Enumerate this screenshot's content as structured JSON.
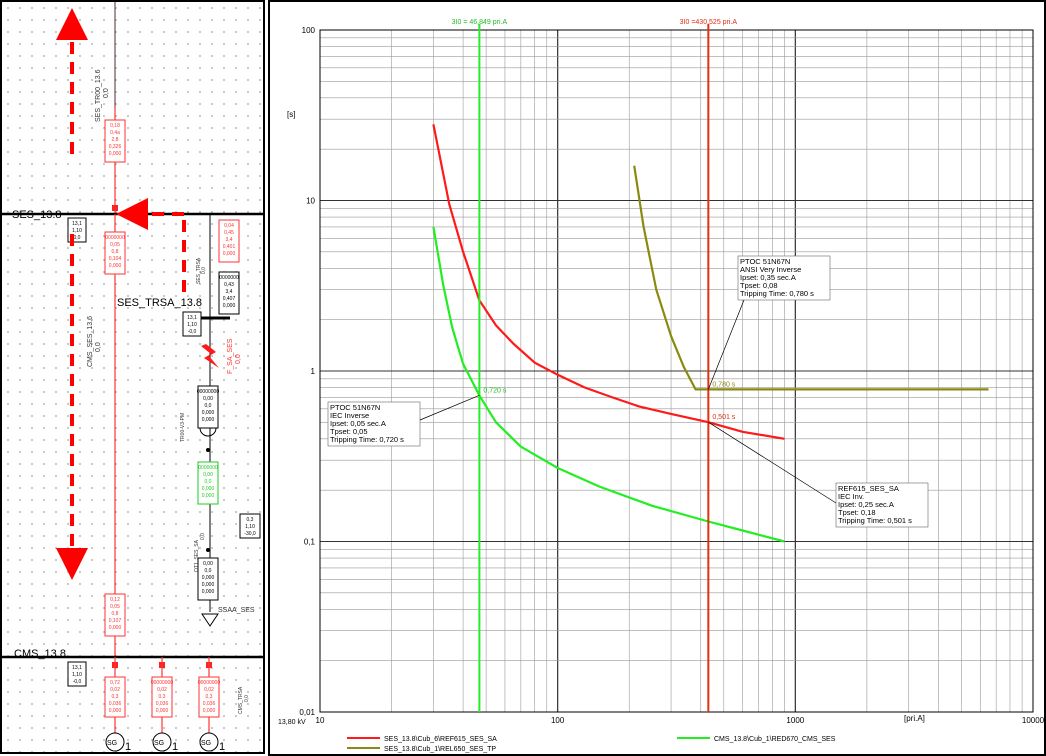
{
  "single_line": {
    "buses": [
      {
        "id": "ses",
        "label": "SES_13.8"
      },
      {
        "id": "trsa",
        "label": "SES_TRSA_13.8"
      },
      {
        "id": "cms",
        "label": "CMS_13.8"
      }
    ],
    "line_labels": {
      "tr00": "SES_TR00_13.6",
      "tr00_val": "0,0",
      "cms_ses": "CMS_SES_13.6",
      "cms_ses_val": "0,0",
      "ses_trsa": "SES_TRSA",
      "ses_trsa_val": "0,0",
      "fault": "F_SA_SES",
      "fault_val": "0,0",
      "tr00_v3": "TR00-V3-PM",
      "qt1": "QT1_SES_SA",
      "qt1_val": "0,0",
      "ssaa": "SSAA_SES",
      "cms_trsa": "CMS_TRSA",
      "cms_trsa_val": "0,0"
    },
    "sg_label": "SG",
    "sg_index": "1",
    "result_boxes": {
      "b1": [
        "0,18",
        "0,4a",
        "2,8",
        "0,326",
        "0,000"
      ],
      "b2": [
        "0000000",
        "0,05",
        "0,8",
        "0,104",
        "0,000"
      ],
      "b3": [
        "0,04",
        "0,45",
        "3,4",
        "0,401",
        "0,000"
      ],
      "b4": [
        "0000000",
        "0,43",
        "3,4",
        "0,407",
        "0,000"
      ],
      "b5": [
        "00000000",
        "0,00",
        "0,0",
        "0,000",
        "0,000"
      ],
      "b6": [
        "0000000",
        "0,00",
        "0,0",
        "0,000",
        "0,000"
      ],
      "b7": [
        "0,00",
        "0,0",
        "0,000",
        "0,000",
        "0,000"
      ],
      "b8": [
        "0,12",
        "0,05",
        "0,8",
        "0,107",
        "0,000"
      ],
      "b9": [
        "0,72",
        "0,02",
        "0,3",
        "0,036",
        "0,000"
      ],
      "b10": [
        "00000000",
        "0,02",
        "0,3",
        "0,036",
        "0,000"
      ],
      "b11": [
        "00000000",
        "0,02",
        "0,3",
        "0,036",
        "0,000"
      ],
      "ses_bus_box": [
        "13,1",
        "1,10",
        "0,0"
      ],
      "trsa_bus_box": [
        "13,1",
        "1,10",
        "-0,0"
      ],
      "sa_bus_box": [
        "0,3",
        "1,10",
        "-30,0"
      ],
      "cms_bus_box": [
        "13,1",
        "1,10",
        "-0,0"
      ]
    }
  },
  "tcc_chart": {
    "y_axis_unit": "[s]",
    "x_axis_unit": "[pri.A]",
    "voltage_label": "13,80 kV",
    "x_ticks": [
      "10",
      "100",
      "1000",
      "10000"
    ],
    "y_ticks": [
      "100",
      "10",
      "1",
      "0,1",
      "0,01"
    ],
    "vline_green_label": "3I0 = 46,849 pri.A",
    "vline_red_label": "3I0 =430,525 pri.A",
    "point_labels": {
      "green": "0,720 s",
      "olive": "0,780 s",
      "red": "0,501 s"
    },
    "annotations": {
      "green": [
        "PTOC 51N67N",
        "IEC Inverse",
        "Ipset: 0,05 sec.A",
        "Tpset: 0,05",
        "Tripping Time: 0,720 s"
      ],
      "olive": [
        "PTOC 51N67N",
        "ANSI Very Inverse",
        "Ipset: 0,35 sec.A",
        "Tpset: 0,08",
        "Tripping Time: 0,780 s"
      ],
      "red": [
        "REF615_SES_SA",
        "IEC Inv.",
        "Ipset: 0,25 sec.A",
        "Tpset: 0,18",
        "Tripping Time: 0,501 s"
      ]
    },
    "legend": [
      {
        "name": "SES_13.8\\Cub_6\\REF615_SES_SA",
        "color": "#ff1a1a"
      },
      {
        "name": "CMS_13.8\\Cub_1\\RED670_CMS_SES",
        "color": "#22ee22"
      },
      {
        "name": "SES_13.8\\Cub_1\\REL650_SES_TP",
        "color": "#8a8a10"
      }
    ]
  },
  "chart_data": {
    "type": "line",
    "title": "",
    "xlabel": "[pri.A]",
    "ylabel": "[s]",
    "x_scale": "log",
    "y_scale": "log",
    "xlim": [
      10,
      10000
    ],
    "ylim": [
      0.01,
      100
    ],
    "grid": true,
    "legend_position": "bottom",
    "series": [
      {
        "name": "SES_13.8\\Cub_6\\REF615_SES_SA",
        "color": "#ff1a1a",
        "x": [
          30,
          35,
          40,
          46.8,
          55,
          65,
          80,
          100,
          130,
          170,
          220,
          300,
          430.5,
          600,
          900
        ],
        "y": [
          28,
          9.5,
          5.0,
          2.6,
          1.85,
          1.45,
          1.12,
          0.95,
          0.8,
          0.7,
          0.62,
          0.56,
          0.501,
          0.44,
          0.4
        ]
      },
      {
        "name": "CMS_13.8\\Cub_1\\RED670_CMS_SES",
        "color": "#22ee22",
        "x": [
          30,
          33,
          36,
          40,
          46.8,
          55,
          70,
          100,
          150,
          250,
          430.5,
          600,
          900
        ],
        "y": [
          7.0,
          3.2,
          1.8,
          1.1,
          0.72,
          0.5,
          0.36,
          0.27,
          0.21,
          0.162,
          0.131,
          0.116,
          0.1
        ]
      },
      {
        "name": "SES_13.8\\Cub_1\\REL650_SES_TP",
        "color": "#8a8a10",
        "x": [
          210,
          230,
          260,
          300,
          340,
          370,
          380,
          430.5,
          1000,
          3000,
          6500
        ],
        "y": [
          16,
          7.0,
          3.0,
          1.6,
          1.05,
          0.84,
          0.78,
          0.78,
          0.78,
          0.78,
          0.78
        ]
      }
    ],
    "vertical_markers": [
      {
        "x": 46.849,
        "label": "3I0 = 46,849 pri.A",
        "color": "#22ee22"
      },
      {
        "x": 430.525,
        "label": "3I0 =430,525 pri.A",
        "color": "#e03010"
      }
    ],
    "marked_points": [
      {
        "x": 46.849,
        "y": 0.72,
        "label": "0,720 s"
      },
      {
        "x": 430.525,
        "y": 0.78,
        "label": "0,780 s"
      },
      {
        "x": 430.525,
        "y": 0.501,
        "label": "0,501 s"
      }
    ]
  }
}
